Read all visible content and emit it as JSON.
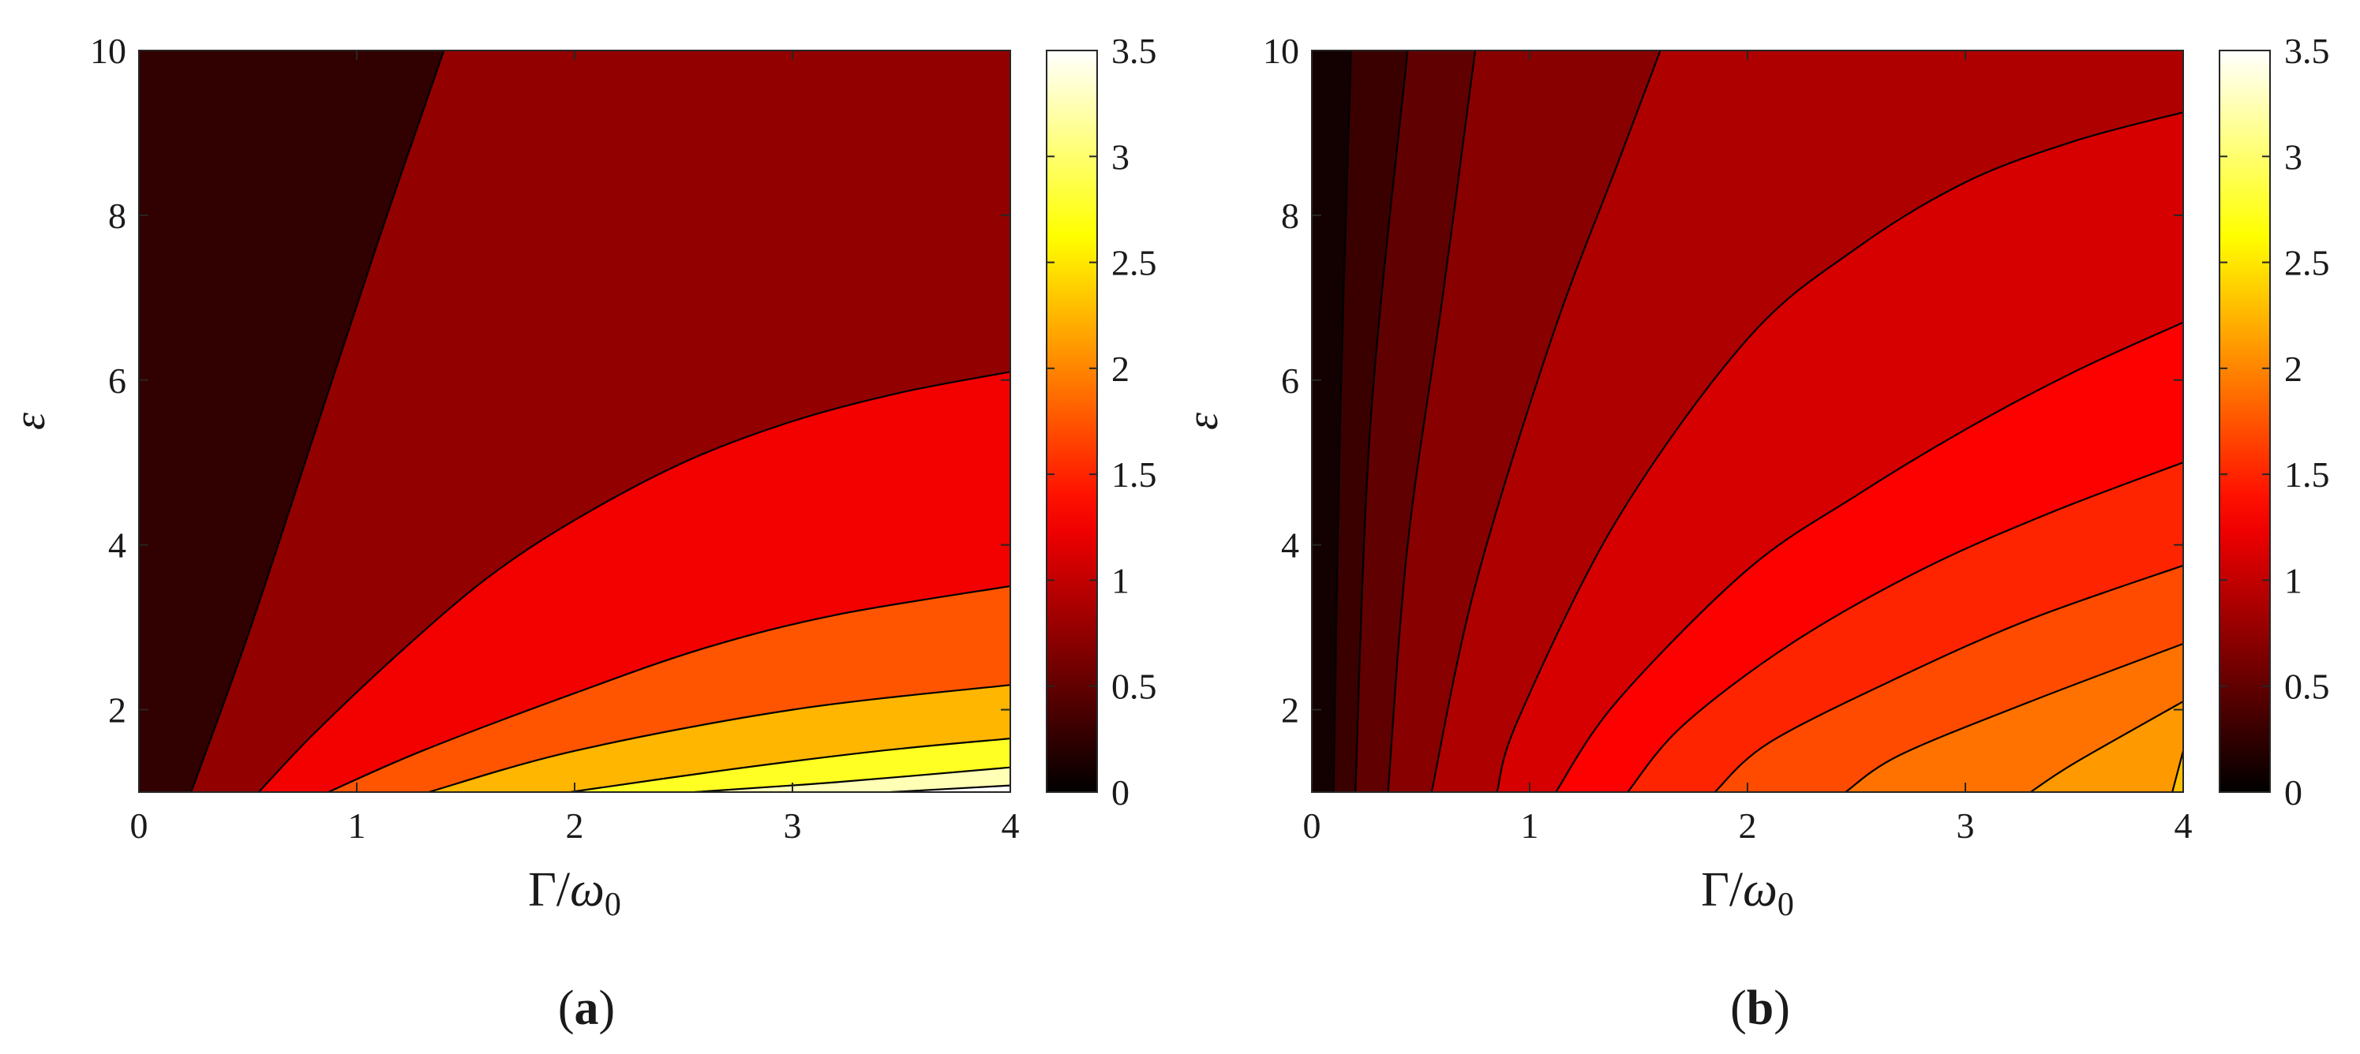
{
  "chart_data": [
    {
      "type": "heatmap",
      "panel_label": "(a)",
      "panel_letter": "a",
      "xlabel": "Γ/ω0",
      "ylabel": "ε",
      "xlim": [
        0,
        4
      ],
      "ylim": [
        1,
        10
      ],
      "x_ticks": [
        "0",
        "1",
        "2",
        "3",
        "4"
      ],
      "y_ticks": [
        "2",
        "4",
        "6",
        "8",
        "10"
      ],
      "colorbar_ticks": [
        "0",
        "0.5",
        "1",
        "1.5",
        "2",
        "2.5",
        "3",
        "3.5"
      ],
      "colorbar_range": [
        0,
        3.5
      ],
      "grid": false,
      "colormap": "hot",
      "contour_levels": [
        0.5,
        1.0,
        1.5,
        2.0,
        2.5,
        3.0,
        3.5
      ],
      "band_fill_values": [
        0.25,
        0.75,
        1.25,
        1.75,
        2.25,
        2.75,
        3.25,
        3.75
      ],
      "contours": [
        {
          "level": 0.5,
          "points": [
            [
              0.24,
              1.0
            ],
            [
              0.5,
              2.9
            ],
            [
              0.8,
              5.3
            ],
            [
              1.1,
              7.7
            ],
            [
              1.4,
              10.0
            ]
          ]
        },
        {
          "level": 1.0,
          "points": [
            [
              0.55,
              1.0
            ],
            [
              0.8,
              1.7
            ],
            [
              1.2,
              2.7
            ],
            [
              1.6,
              3.6
            ],
            [
              2.0,
              4.3
            ],
            [
              2.5,
              5.0
            ],
            [
              3.0,
              5.5
            ],
            [
              3.5,
              5.85
            ],
            [
              4.0,
              6.1
            ]
          ]
        },
        {
          "level": 1.5,
          "points": [
            [
              0.87,
              1.0
            ],
            [
              1.3,
              1.5
            ],
            [
              2.0,
              2.2
            ],
            [
              2.6,
              2.75
            ],
            [
              3.2,
              3.15
            ],
            [
              4.0,
              3.5
            ]
          ]
        },
        {
          "level": 2.0,
          "points": [
            [
              1.33,
              1.0
            ],
            [
              2.0,
              1.5
            ],
            [
              3.0,
              2.0
            ],
            [
              4.0,
              2.3
            ]
          ]
        },
        {
          "level": 2.5,
          "points": [
            [
              1.98,
              1.0
            ],
            [
              2.7,
              1.27
            ],
            [
              3.4,
              1.5
            ],
            [
              4.0,
              1.65
            ]
          ]
        },
        {
          "level": 3.0,
          "points": [
            [
              2.55,
              1.0
            ],
            [
              3.2,
              1.12
            ],
            [
              4.0,
              1.3
            ]
          ]
        },
        {
          "level": 3.5,
          "points": [
            [
              3.45,
              1.0
            ],
            [
              4.0,
              1.08
            ]
          ]
        }
      ]
    },
    {
      "type": "heatmap",
      "panel_label": "(b)",
      "panel_letter": "b",
      "xlabel": "Γ/ω0",
      "ylabel": "ε",
      "xlim": [
        0,
        4
      ],
      "ylim": [
        1,
        10
      ],
      "x_ticks": [
        "0",
        "1",
        "2",
        "3",
        "4"
      ],
      "y_ticks": [
        "2",
        "4",
        "6",
        "8",
        "10"
      ],
      "colorbar_ticks": [
        "0",
        "0.5",
        "1",
        "1.5",
        "2",
        "2.5",
        "3",
        "3.5"
      ],
      "colorbar_range": [
        0,
        3.5
      ],
      "grid": false,
      "colormap": "hot",
      "contour_levels": [
        0.2,
        0.4,
        0.6,
        0.8,
        1.0,
        1.2,
        1.4,
        1.6,
        1.8,
        2.0,
        2.2
      ],
      "band_fill_values": [
        0.1,
        0.3,
        0.5,
        0.7,
        0.9,
        1.1,
        1.3,
        1.5,
        1.7,
        1.9,
        2.1,
        2.3
      ],
      "contours": [
        {
          "level": 0.2,
          "points": [
            [
              0.1,
              1.0
            ],
            [
              0.13,
              5.5
            ],
            [
              0.18,
              10.0
            ]
          ]
        },
        {
          "level": 0.4,
          "points": [
            [
              0.2,
              1.0
            ],
            [
              0.27,
              5.5
            ],
            [
              0.44,
              10.0
            ]
          ]
        },
        {
          "level": 0.6,
          "points": [
            [
              0.35,
              1.0
            ],
            [
              0.44,
              4.0
            ],
            [
              0.6,
              7.0
            ],
            [
              0.75,
              10.0
            ]
          ]
        },
        {
          "level": 0.8,
          "points": [
            [
              0.55,
              1.0
            ],
            [
              0.75,
              3.5
            ],
            [
              1.1,
              6.5
            ],
            [
              1.4,
              8.6
            ],
            [
              1.6,
              10.0
            ]
          ]
        },
        {
          "level": 1.0,
          "points": [
            [
              0.85,
              1.0
            ],
            [
              0.95,
              1.9
            ],
            [
              1.4,
              4.3
            ],
            [
              2.0,
              6.5
            ],
            [
              2.5,
              7.6
            ],
            [
              3.0,
              8.4
            ],
            [
              3.5,
              8.9
            ],
            [
              4.0,
              9.25
            ]
          ]
        },
        {
          "level": 1.2,
          "points": [
            [
              1.12,
              1.0
            ],
            [
              1.4,
              2.1
            ],
            [
              2.0,
              3.7
            ],
            [
              2.5,
              4.6
            ],
            [
              3.0,
              5.4
            ],
            [
              3.5,
              6.1
            ],
            [
              4.0,
              6.7
            ]
          ]
        },
        {
          "level": 1.4,
          "points": [
            [
              1.45,
              1.0
            ],
            [
              1.7,
              1.8
            ],
            [
              2.2,
              2.8
            ],
            [
              2.8,
              3.7
            ],
            [
              3.4,
              4.4
            ],
            [
              4.0,
              5.0
            ]
          ]
        },
        {
          "level": 1.6,
          "points": [
            [
              1.85,
              1.0
            ],
            [
              2.1,
              1.6
            ],
            [
              2.7,
              2.4
            ],
            [
              3.3,
              3.1
            ],
            [
              4.0,
              3.75
            ]
          ]
        },
        {
          "level": 1.8,
          "points": [
            [
              2.45,
              1.0
            ],
            [
              2.7,
              1.45
            ],
            [
              3.3,
              2.1
            ],
            [
              4.0,
              2.8
            ]
          ]
        },
        {
          "level": 2.0,
          "points": [
            [
              3.3,
              1.0
            ],
            [
              3.5,
              1.35
            ],
            [
              4.0,
              2.1
            ]
          ]
        },
        {
          "level": 2.2,
          "points": [
            [
              3.95,
              1.0
            ],
            [
              4.0,
              1.5
            ]
          ]
        }
      ]
    }
  ]
}
